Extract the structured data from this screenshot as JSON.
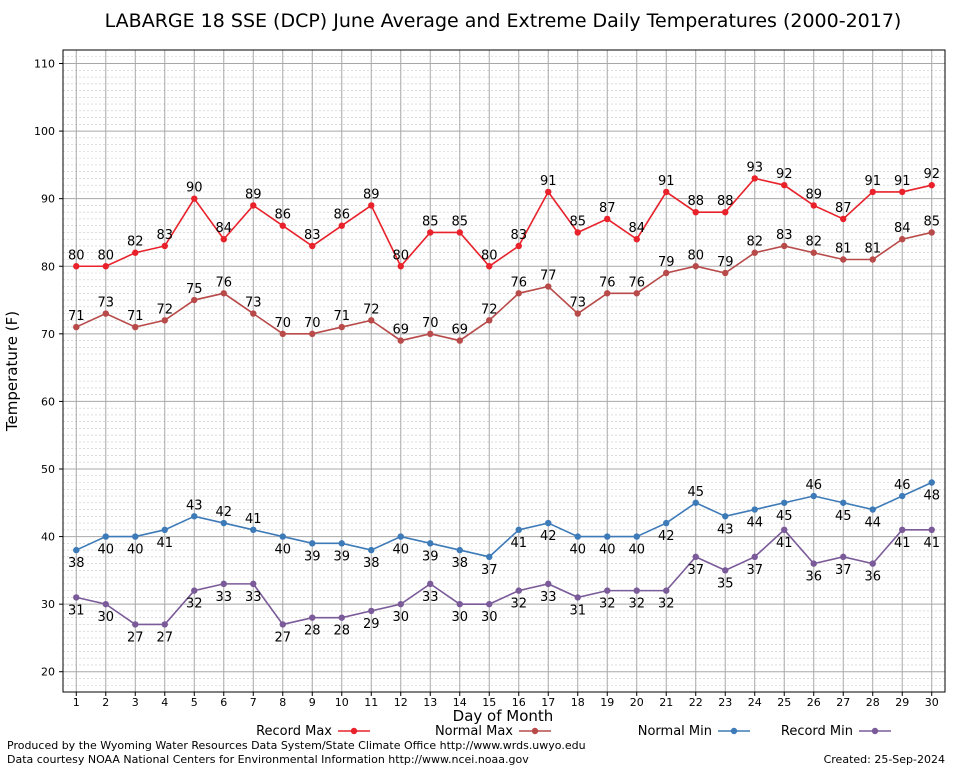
{
  "chart_data": {
    "type": "line",
    "title": "LABARGE 18 SSE (DCP) June Average and Extreme Daily Temperatures (2000-2017)",
    "xlabel": "Day of Month",
    "ylabel": "Temperature (F)",
    "xlim": [
      0.55,
      30.45
    ],
    "ylim": [
      17,
      112
    ],
    "yticks": [
      20,
      30,
      40,
      50,
      60,
      70,
      80,
      90,
      100,
      110
    ],
    "x": [
      1,
      2,
      3,
      4,
      5,
      6,
      7,
      8,
      9,
      10,
      11,
      12,
      13,
      14,
      15,
      16,
      17,
      18,
      19,
      20,
      21,
      22,
      23,
      24,
      25,
      26,
      27,
      28,
      29,
      30
    ],
    "grid": true,
    "legend_position": "bottom",
    "series": [
      {
        "name": "Record Max",
        "color": "#e8212a",
        "label_position": "above",
        "values": [
          80,
          80,
          82,
          83,
          90,
          84,
          89,
          86,
          83,
          86,
          89,
          80,
          85,
          85,
          80,
          83,
          91,
          85,
          87,
          84,
          91,
          88,
          88,
          93,
          92,
          89,
          87,
          91,
          91,
          92
        ]
      },
      {
        "name": "Normal Max",
        "color": "#b84a4a",
        "label_position": "above",
        "values": [
          71,
          73,
          71,
          72,
          75,
          76,
          73,
          70,
          70,
          71,
          72,
          69,
          70,
          69,
          72,
          76,
          77,
          73,
          76,
          76,
          79,
          80,
          79,
          82,
          83,
          82,
          81,
          81,
          84,
          85
        ]
      },
      {
        "name": "Normal Min",
        "color": "#3d7ab8",
        "label_position": "mixed",
        "label_below": [
          1,
          2,
          3,
          4,
          8,
          9,
          10,
          11,
          12,
          13,
          14,
          15,
          16,
          17,
          18,
          19,
          20,
          21,
          23,
          24,
          25,
          27,
          28,
          30
        ],
        "values": [
          38,
          40,
          40,
          41,
          43,
          42,
          41,
          40,
          39,
          39,
          38,
          40,
          39,
          38,
          37,
          41,
          42,
          40,
          40,
          40,
          42,
          45,
          43,
          44,
          45,
          46,
          45,
          44,
          46,
          48
        ]
      },
      {
        "name": "Record Min",
        "color": "#7a5a98",
        "label_position": "mixed",
        "label_below": [
          1,
          2,
          3,
          4,
          5,
          6,
          7,
          8,
          9,
          10,
          11,
          12,
          13,
          14,
          15,
          16,
          17,
          18,
          19,
          20,
          21,
          22,
          23,
          24,
          25,
          26,
          27,
          28,
          29,
          30
        ],
        "values": [
          31,
          30,
          27,
          27,
          32,
          33,
          33,
          27,
          28,
          28,
          29,
          30,
          33,
          30,
          30,
          32,
          33,
          31,
          32,
          32,
          32,
          37,
          35,
          37,
          41,
          36,
          37,
          36,
          41,
          41
        ]
      }
    ]
  },
  "footer": {
    "line1": "Produced by the Wyoming Water Resources Data System/State Climate Office http://www.wrds.uwyo.edu",
    "line2": "Data courtesy NOAA National Centers for Environmental Information http://www.ncei.noaa.gov",
    "created": "Created:  25-Sep-2024"
  }
}
